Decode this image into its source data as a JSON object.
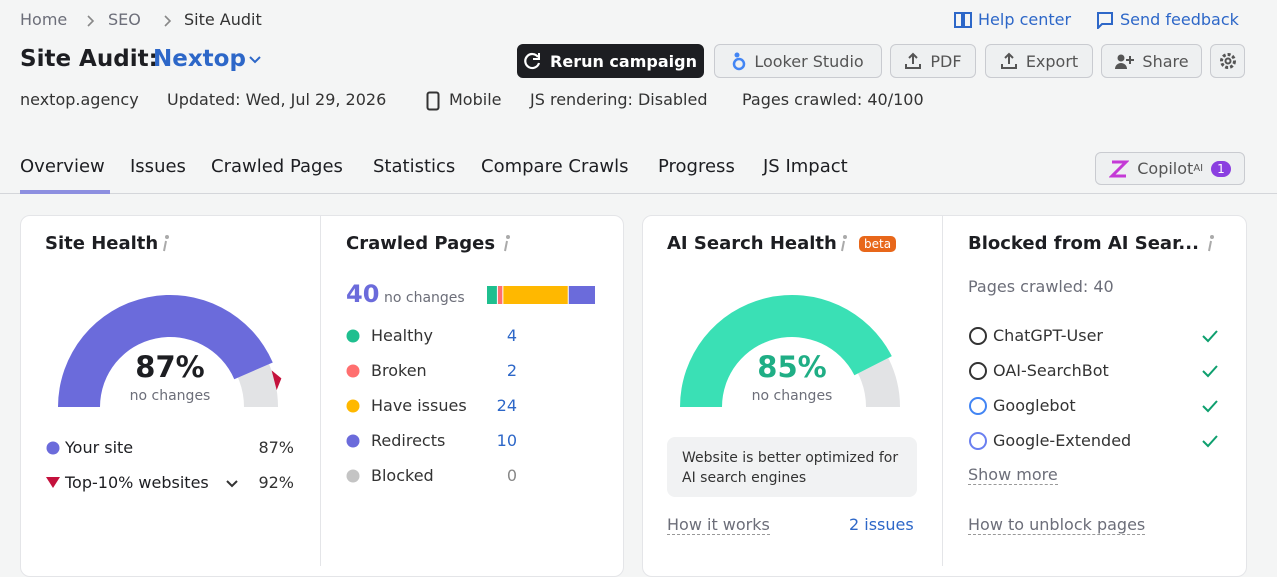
{
  "breadcrumb": [
    "Home",
    "SEO",
    "Site Audit"
  ],
  "header": {
    "title": "Site Audit:",
    "project": "Nextop",
    "help": "Help center",
    "feedback": "Send feedback"
  },
  "actions": [
    "Rerun campaign",
    "Looker Studio",
    "PDF",
    "Export",
    "Share"
  ],
  "meta": [
    "nextop.agency",
    "Updated: Wed, Jul 29, 2026",
    "Mobile",
    "JS rendering: Disabled",
    "Pages crawled: 40/100"
  ],
  "tabs": [
    "Overview",
    "Issues",
    "Crawled Pages",
    "Statistics",
    "Compare Crawls",
    "Progress",
    "JS Impact"
  ],
  "copilot": {
    "label": "Copilot",
    "sup": "AI",
    "badge": 1
  },
  "site_health": {
    "title": "Site Health",
    "value": {
      "value": 87,
      "label": "87%"
    },
    "note": "no changes",
    "color": "#6b6bdb",
    "legend": [
      {
        "name": "Your site",
        "value": {
          "value": 87,
          "label": "87%"
        }
      },
      {
        "name": "Top-10% websites",
        "value": {
          "value": 92,
          "label": "92%"
        }
      }
    ]
  },
  "crawled_pages": {
    "title": "Crawled Pages",
    "total": 40,
    "note": "no changes",
    "rows": [
      {
        "name": "Healthy",
        "value": 4,
        "color": "#1fbf8f"
      },
      {
        "name": "Broken",
        "value": 2,
        "color": "#ff6f6f"
      },
      {
        "name": "Have issues",
        "value": 24,
        "color": "#ffb800"
      },
      {
        "name": "Redirects",
        "value": 10,
        "color": "#6b6bdb"
      },
      {
        "name": "Blocked",
        "value": 0,
        "color": "#c4c4c4"
      }
    ]
  },
  "ai_search_health": {
    "title": "AI Search Health",
    "badge": "beta",
    "value": {
      "value": 85,
      "label": "85%"
    },
    "note": "no changes",
    "color": "#3ae0b5",
    "message": "Website is better optimized for AI search engines",
    "link": "How it works",
    "issues": "2 issues"
  },
  "blocked": {
    "title": "Blocked from AI Sear...",
    "subtitle": "Pages crawled: 40",
    "bots": [
      "ChatGPT-User",
      "OAI-SearchBot",
      "Googlebot",
      "Google-Extended"
    ],
    "more": "Show more",
    "link": "How to unblock pages"
  }
}
